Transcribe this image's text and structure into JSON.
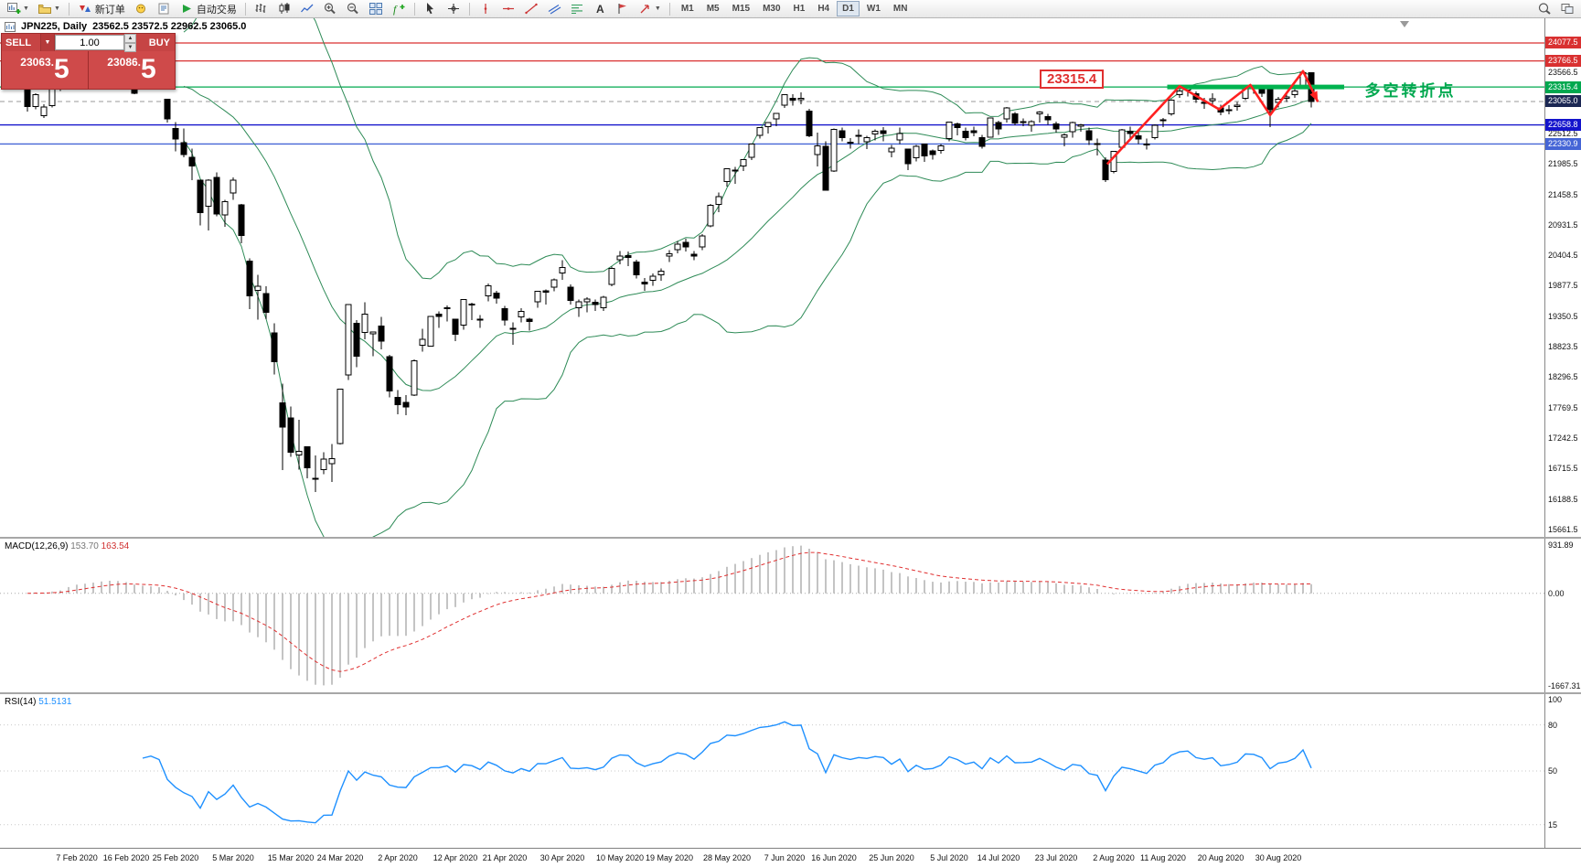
{
  "toolbar": {
    "new_order_label": "新订单",
    "autotrading_label": "自动交易",
    "timeframes": [
      "M1",
      "M5",
      "M15",
      "M30",
      "H1",
      "H4",
      "D1",
      "W1",
      "MN"
    ],
    "active_timeframe": "D1"
  },
  "chart_header": {
    "symbol_period": "JPN225, Daily",
    "ohlc": "23562.5 23572.5 22962.5 23065.0"
  },
  "trade_panel": {
    "sell_label": "SELL",
    "buy_label": "BUY",
    "volume": "1.00",
    "sell_price_main": "23063.",
    "sell_price_big": "5",
    "buy_price_main": "23086.",
    "buy_price_big": "5"
  },
  "chart_data": {
    "type": "candlestick",
    "symbol": "JPN225",
    "timeframe": "Daily",
    "title": "JPN225, Daily 23562.5 23572.5 22962.5 23065.0",
    "y_range": [
      24504,
      15534
    ],
    "candles": [
      [
        23290,
        23300,
        22890,
        22980
      ],
      [
        22980,
        23210,
        22930,
        23180
      ],
      [
        22820,
        23020,
        22780,
        22970
      ],
      [
        22990,
        23290,
        22960,
        23280
      ],
      [
        23300,
        23400,
        23250,
        23320
      ],
      [
        23380,
        23880,
        23370,
        23870
      ],
      [
        23850,
        23880,
        23680,
        23830
      ],
      [
        23750,
        23810,
        23650,
        23680
      ],
      [
        23690,
        23760,
        23640,
        23740
      ],
      [
        23790,
        23960,
        23780,
        23860
      ],
      [
        23830,
        23880,
        23710,
        23830
      ],
      [
        23790,
        23800,
        23610,
        23690
      ],
      [
        23620,
        23670,
        23510,
        23520
      ],
      [
        23450,
        23460,
        23190,
        23210
      ],
      [
        23310,
        23420,
        23270,
        23400
      ],
      [
        23430,
        23520,
        23330,
        23480
      ],
      [
        23370,
        23430,
        23270,
        23390
      ],
      [
        23100,
        23110,
        22700,
        22760
      ],
      [
        22600,
        22710,
        22200,
        22420
      ],
      [
        22350,
        22600,
        22100,
        22150
      ],
      [
        22100,
        22250,
        21700,
        21950
      ],
      [
        21700,
        21710,
        20920,
        21140
      ],
      [
        21250,
        21720,
        20830,
        21700
      ],
      [
        21750,
        21840,
        21080,
        21120
      ],
      [
        21100,
        21360,
        20900,
        21330
      ],
      [
        21480,
        21750,
        21360,
        21700
      ],
      [
        21280,
        21290,
        20610,
        20750
      ],
      [
        20300,
        20350,
        19470,
        19700
      ],
      [
        19800,
        20070,
        19290,
        19870
      ],
      [
        19740,
        19870,
        19300,
        19420
      ],
      [
        19060,
        19230,
        18340,
        18560
      ],
      [
        17850,
        18180,
        16690,
        17430
      ],
      [
        17590,
        17790,
        16920,
        17000
      ],
      [
        16950,
        17560,
        16700,
        17010
      ],
      [
        17090,
        17100,
        16550,
        16730
      ],
      [
        16550,
        16940,
        16310,
        16550
      ],
      [
        16700,
        17000,
        16620,
        16880
      ],
      [
        16800,
        17140,
        16480,
        16890
      ],
      [
        17150,
        18090,
        17130,
        18090
      ],
      [
        18330,
        19550,
        18250,
        19550
      ],
      [
        19230,
        19280,
        18470,
        18660
      ],
      [
        19070,
        19590,
        18950,
        19390
      ],
      [
        19050,
        19070,
        18660,
        19080
      ],
      [
        19180,
        19340,
        18780,
        18920
      ],
      [
        18650,
        18680,
        17950,
        18060
      ],
      [
        17950,
        18070,
        17650,
        17820
      ],
      [
        17860,
        17990,
        17640,
        17780
      ],
      [
        17990,
        18600,
        17970,
        18580
      ],
      [
        18850,
        19130,
        18740,
        18950
      ],
      [
        18830,
        19350,
        18830,
        19350
      ],
      [
        19390,
        19430,
        19150,
        19350
      ],
      [
        19500,
        19540,
        19260,
        19500
      ],
      [
        19300,
        19310,
        18920,
        19040
      ],
      [
        19200,
        19640,
        19120,
        19640
      ],
      [
        19550,
        19580,
        19280,
        19560
      ],
      [
        19290,
        19370,
        19150,
        19300
      ],
      [
        19700,
        19920,
        19610,
        19880
      ],
      [
        19750,
        19790,
        19570,
        19660
      ],
      [
        19480,
        19530,
        19190,
        19280
      ],
      [
        19140,
        19240,
        18860,
        19140
      ],
      [
        19340,
        19490,
        19240,
        19430
      ],
      [
        19300,
        19320,
        19100,
        19260
      ],
      [
        19600,
        19790,
        19500,
        19780
      ],
      [
        19790,
        19810,
        19550,
        19770
      ],
      [
        19850,
        20000,
        19780,
        19980
      ],
      [
        20100,
        20320,
        19980,
        20190
      ],
      [
        19850,
        19900,
        19550,
        19620
      ],
      [
        19500,
        19640,
        19340,
        19600
      ],
      [
        19600,
        19680,
        19420,
        19650
      ],
      [
        19590,
        19640,
        19440,
        19550
      ],
      [
        19500,
        19700,
        19440,
        19680
      ],
      [
        19900,
        20210,
        19870,
        20180
      ],
      [
        20330,
        20480,
        20250,
        20390
      ],
      [
        20400,
        20470,
        20220,
        20370
      ],
      [
        20290,
        20330,
        20000,
        20070
      ],
      [
        19940,
        20010,
        19790,
        19910
      ],
      [
        19970,
        20090,
        19880,
        20040
      ],
      [
        20070,
        20180,
        19960,
        20130
      ],
      [
        20390,
        20490,
        20290,
        20430
      ],
      [
        20500,
        20650,
        20440,
        20600
      ],
      [
        20630,
        20690,
        20470,
        20550
      ],
      [
        20420,
        20480,
        20320,
        20390
      ],
      [
        20550,
        20770,
        20490,
        20740
      ],
      [
        20910,
        21290,
        20890,
        21270
      ],
      [
        21280,
        21490,
        21150,
        21420
      ],
      [
        21680,
        21910,
        21590,
        21900
      ],
      [
        21870,
        21930,
        21640,
        21880
      ],
      [
        21950,
        22070,
        21860,
        22060
      ],
      [
        22100,
        22340,
        22050,
        22330
      ],
      [
        22480,
        22620,
        22420,
        22610
      ],
      [
        22630,
        22710,
        22510,
        22700
      ],
      [
        22760,
        22870,
        22640,
        22860
      ],
      [
        23000,
        23180,
        22950,
        23180
      ],
      [
        23120,
        23190,
        22990,
        23090
      ],
      [
        23100,
        23220,
        23020,
        23120
      ],
      [
        22900,
        22940,
        22450,
        22470
      ],
      [
        22150,
        22530,
        21940,
        22300
      ],
      [
        22290,
        22380,
        21520,
        21530
      ],
      [
        21860,
        22600,
        21850,
        22580
      ],
      [
        22560,
        22610,
        22380,
        22440
      ],
      [
        22350,
        22430,
        22250,
        22360
      ],
      [
        22460,
        22580,
        22330,
        22480
      ],
      [
        22370,
        22470,
        22240,
        22440
      ],
      [
        22500,
        22580,
        22390,
        22550
      ],
      [
        22560,
        22620,
        22380,
        22510
      ],
      [
        22190,
        22310,
        22100,
        22260
      ],
      [
        22400,
        22610,
        22330,
        22510
      ],
      [
        22240,
        22250,
        21880,
        21990
      ],
      [
        22090,
        22310,
        22030,
        22290
      ],
      [
        22330,
        22340,
        22020,
        22120
      ],
      [
        22210,
        22230,
        22060,
        22150
      ],
      [
        22220,
        22330,
        22160,
        22300
      ],
      [
        22420,
        22720,
        22380,
        22710
      ],
      [
        22680,
        22700,
        22480,
        22610
      ],
      [
        22550,
        22610,
        22390,
        22440
      ],
      [
        22560,
        22630,
        22460,
        22530
      ],
      [
        22440,
        22490,
        22250,
        22290
      ],
      [
        22450,
        22790,
        22440,
        22780
      ],
      [
        22700,
        22730,
        22490,
        22590
      ],
      [
        22760,
        22970,
        22700,
        22950
      ],
      [
        22850,
        22880,
        22650,
        22690
      ],
      [
        22720,
        22770,
        22640,
        22700
      ],
      [
        22650,
        22740,
        22540,
        22720
      ],
      [
        22850,
        22900,
        22700,
        22880
      ],
      [
        22800,
        22850,
        22660,
        22750
      ],
      [
        22680,
        22720,
        22530,
        22590
      ],
      [
        22450,
        22510,
        22290,
        22490
      ],
      [
        22540,
        22720,
        22440,
        22700
      ],
      [
        22640,
        22680,
        22540,
        22660
      ],
      [
        22560,
        22610,
        22310,
        22400
      ],
      [
        22340,
        22420,
        22130,
        22340
      ],
      [
        22050,
        22100,
        21670,
        21710
      ],
      [
        21850,
        22210,
        21820,
        22200
      ],
      [
        22270,
        22590,
        22250,
        22570
      ],
      [
        22550,
        22630,
        22420,
        22510
      ],
      [
        22470,
        22540,
        22330,
        22420
      ],
      [
        22330,
        22420,
        22230,
        22330
      ],
      [
        22440,
        22670,
        22410,
        22650
      ],
      [
        22730,
        22780,
        22620,
        22750
      ],
      [
        22850,
        23100,
        22820,
        23090
      ],
      [
        23180,
        23280,
        23130,
        23250
      ],
      [
        23260,
        23330,
        23150,
        23290
      ],
      [
        23200,
        23240,
        23040,
        23100
      ],
      [
        23050,
        23130,
        22940,
        23050
      ],
      [
        23080,
        23210,
        23020,
        23110
      ],
      [
        22950,
        23010,
        22830,
        22880
      ],
      [
        22920,
        23000,
        22840,
        22920
      ],
      [
        22980,
        23060,
        22910,
        23000
      ],
      [
        23120,
        23310,
        23090,
        23300
      ],
      [
        23310,
        23350,
        23200,
        23290
      ],
      [
        23280,
        23340,
        23140,
        23210
      ],
      [
        23280,
        23310,
        22620,
        22920
      ],
      [
        23050,
        23140,
        22960,
        23100
      ],
      [
        23120,
        23190,
        23060,
        23140
      ],
      [
        23180,
        23290,
        23130,
        23250
      ],
      [
        23310,
        23570,
        23280,
        23560
      ],
      [
        23562.5,
        23572.5,
        22962.5,
        23065
      ]
    ],
    "date_labels": [
      {
        "text": "7 Feb 2020",
        "index": 6
      },
      {
        "text": "16 Feb 2020",
        "index": 12
      },
      {
        "text": "25 Feb 2020",
        "index": 18
      },
      {
        "text": "5 Mar 2020",
        "index": 25
      },
      {
        "text": "15 Mar 2020",
        "index": 32
      },
      {
        "text": "24 Mar 2020",
        "index": 38
      },
      {
        "text": "2 Apr 2020",
        "index": 45
      },
      {
        "text": "12 Apr 2020",
        "index": 52
      },
      {
        "text": "21 Apr 2020",
        "index": 58
      },
      {
        "text": "30 Apr 2020",
        "index": 65
      },
      {
        "text": "10 May 2020",
        "index": 72
      },
      {
        "text": "19 May 2020",
        "index": 78
      },
      {
        "text": "28 May 2020",
        "index": 85
      },
      {
        "text": "7 Jun 2020",
        "index": 92
      },
      {
        "text": "16 Jun 2020",
        "index": 98
      },
      {
        "text": "25 Jun 2020",
        "index": 105
      },
      {
        "text": "5 Jul 2020",
        "index": 112
      },
      {
        "text": "14 Jul 2020",
        "index": 118
      },
      {
        "text": "23 Jul 2020",
        "index": 125
      },
      {
        "text": "2 Aug 2020",
        "index": 132
      },
      {
        "text": "11 Aug 2020",
        "index": 138
      },
      {
        "text": "20 Aug 2020",
        "index": 145
      },
      {
        "text": "30 Aug 2020",
        "index": 152
      }
    ],
    "price_scale": {
      "grid_labels": [
        "23566.5",
        "22512.5",
        "21985.5",
        "21458.5",
        "20931.5",
        "20404.5",
        "19877.5",
        "19350.5",
        "18823.5",
        "18296.5",
        "17769.5",
        "17242.5",
        "16715.5",
        "16188.5",
        "15661.5"
      ],
      "markers": [
        {
          "label": "24077.5",
          "price": 24077.5,
          "bg": "#d93030",
          "line_color": "#d93030",
          "line_width": 1.2,
          "line_style": "solid"
        },
        {
          "label": "23766.5",
          "price": 23766.5,
          "bg": "#d93030",
          "line_color": "#d93030",
          "line_width": 1.2,
          "line_style": "solid"
        },
        {
          "label": "23315.4",
          "price": 23315.4,
          "bg": "#00a84f",
          "line_color": "#00a84f",
          "line_width": 1.2,
          "line_style": "solid"
        },
        {
          "label": "23065.0",
          "price": 23065.0,
          "bg": "#1b2753",
          "line_color": "#999999",
          "line_width": 1,
          "line_style": "dashed"
        },
        {
          "label": "22658.8",
          "price": 22658.8,
          "bg": "#1414cc",
          "line_color": "#1414cc",
          "line_width": 1.4,
          "line_style": "solid"
        },
        {
          "label": "22330.9",
          "price": 22330.9,
          "bg": "#4565d6",
          "line_color": "#4565d6",
          "line_width": 1.4,
          "line_style": "solid"
        }
      ]
    },
    "overlays": {
      "bollinger": {
        "period": 20,
        "deviation": 2,
        "color": "#2e8b57"
      },
      "thick_level": {
        "price": 23315.4,
        "from_index": 138.5,
        "to_index": 160,
        "color": "#00b34f",
        "thickness": 5
      },
      "zigzag": {
        "color": "#ff2020",
        "width": 2.6,
        "points": [
          [
            131.2,
            21980
          ],
          [
            140,
            23330
          ],
          [
            144.8,
            22930
          ],
          [
            148.6,
            23350
          ],
          [
            151,
            22830
          ],
          [
            155,
            23590
          ],
          [
            156.8,
            23060
          ]
        ]
      }
    },
    "annotations": {
      "price_label": {
        "text": "23315.4",
        "index": 123,
        "price": 23315.4,
        "color": "#e03030"
      },
      "turning_point": {
        "text": "多空转折点",
        "index": 162.5,
        "price": 23315.4,
        "color": "#00a84f"
      }
    },
    "indicators": {
      "macd": {
        "label": "MACD(12,26,9)",
        "value_main": "153.70",
        "value_signal": "163.54",
        "params": {
          "fast": 12,
          "slow": 26,
          "signal": 9
        },
        "histogram_color": "#b5b5b5",
        "signal_color": "#e03030",
        "scale_max": "931.89",
        "scale_zero": "0.00",
        "scale_min": "-1667.31"
      },
      "rsi": {
        "label": "RSI(14)",
        "value": "51.5131",
        "period": 14,
        "line_color": "#1e90ff",
        "levels": [
          80,
          50,
          15
        ],
        "scale_labels": [
          {
            "text": "100",
            "value": 100
          },
          {
            "text": "80",
            "value": 80
          },
          {
            "text": "50",
            "value": 50
          },
          {
            "text": "15",
            "value": 15
          }
        ]
      }
    }
  }
}
